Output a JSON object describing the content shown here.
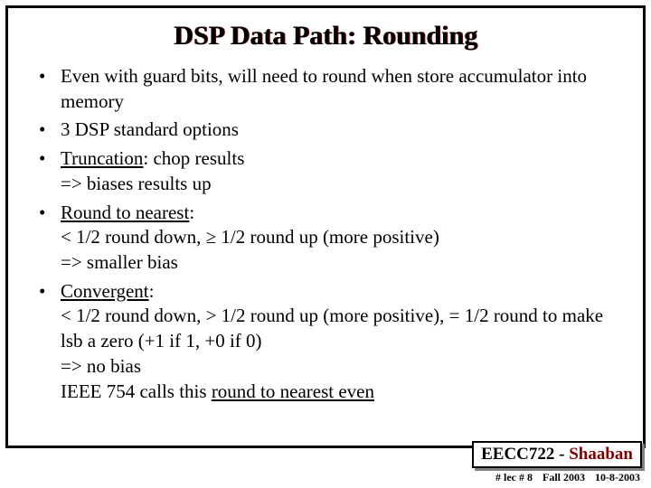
{
  "title": "DSP Data Path: Rounding",
  "bullets": [
    {
      "plain": "Even with guard bits, will need to round when store accumulator into memory"
    },
    {
      "plain": "3 DSP standard options"
    },
    {
      "underline": "Truncation",
      "rest": ": chop results\n=> biases results up"
    },
    {
      "underline": "Round to nearest",
      "rest": ":\n< 1/2 round down, ≥ 1/2 round up (more positive)\n=> smaller bias"
    },
    {
      "underline": "Convergent",
      "rest": ":\n< 1/2 round down, > 1/2 round up (more positive),  = 1/2 round to make lsb a zero (+1 if 1, +0 if 0)\n=> no bias\nIEEE 754 calls this ",
      "tail_under": "round to nearest even"
    }
  ],
  "footer": {
    "course": "EECC722",
    "sep": " - ",
    "author": "Shaaban",
    "lec": "#  lec # 8",
    "term": "Fall 2003",
    "date": "10-8-2003"
  },
  "colors": {
    "border": "#000000",
    "title_shadow": "#800000",
    "footer_shadow": "#808080",
    "author_color": "#800000"
  }
}
